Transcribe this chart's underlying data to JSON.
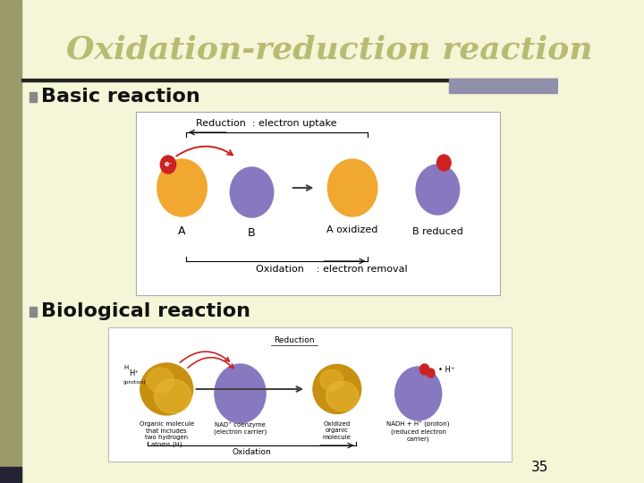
{
  "title": "Oxidation-reduction reaction",
  "title_color": "#b8bc72",
  "title_fontsize": 26,
  "bg_color": "#f5f5d8",
  "left_bar_color": "#9a9a6a",
  "bullet1": "Basic reaction",
  "bullet2": "Biological reaction",
  "bullet_color": "#111111",
  "bullet_fontsize": 16,
  "bullet_marker_color": "#888888",
  "slide_number": "35",
  "top_bar_color": "#222222",
  "top_right_rect_color": "#9090aa",
  "bottom_left_rect_color": "#222233",
  "reduction_label_basic": "Reduction  : electron uptake",
  "oxidation_label_basic": "Oxidation    : electron removal",
  "label_A": "A",
  "label_B": "B",
  "label_A_ox": "A oxidized",
  "label_B_red": "B reduced",
  "inner_bg": "#ffffff",
  "orange_color": "#f0a830",
  "purple_color": "#8878c0",
  "red_color": "#cc2222",
  "gold_color": "#c89010",
  "gold_light": "#e8b830"
}
